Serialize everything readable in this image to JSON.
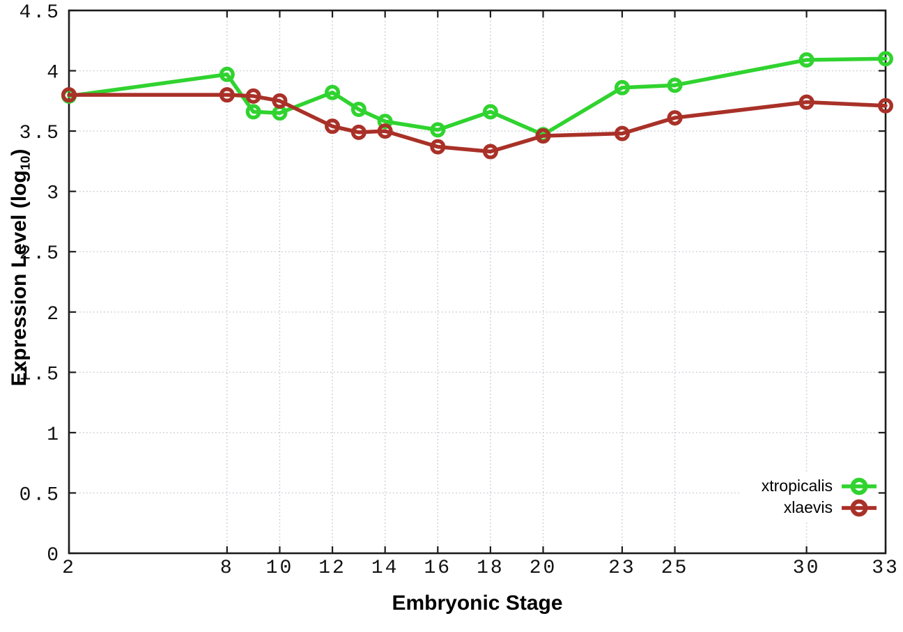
{
  "chart_data": {
    "type": "line",
    "title": "",
    "xlabel": "Embryonic Stage",
    "ylabel": {
      "text": "Expression Level (log",
      "subscript": "10",
      "suffix": ")"
    },
    "xlim": [
      2,
      33
    ],
    "ylim": [
      0,
      4.5
    ],
    "grid": true,
    "legend_position": "inside-bottom-right",
    "x_ticks": [
      2,
      8,
      10,
      12,
      14,
      16,
      18,
      20,
      23,
      25,
      30,
      33
    ],
    "x_tick_labels": [
      "2",
      "8",
      "10",
      "12",
      "14",
      "16",
      "18",
      "20",
      "23",
      "25",
      "30",
      "33"
    ],
    "y_ticks": [
      0,
      0.5,
      1,
      1.5,
      2,
      2.5,
      3,
      3.5,
      4,
      4.5
    ],
    "y_tick_labels": [
      "0",
      "0.5",
      "1",
      "1.5",
      "2",
      "2.5",
      "3",
      "3.5",
      "4",
      "4.5"
    ],
    "x": [
      2,
      8,
      9,
      10,
      12,
      13,
      14,
      16,
      18,
      20,
      23,
      25,
      30,
      33
    ],
    "series": [
      {
        "name": "xtropicalis",
        "color": "#30d32f",
        "values": [
          3.79,
          3.97,
          3.66,
          3.65,
          3.82,
          3.68,
          3.58,
          3.51,
          3.66,
          3.47,
          3.86,
          3.88,
          4.09,
          4.1
        ]
      },
      {
        "name": "xlaevis",
        "color": "#a93128",
        "values": [
          3.8,
          3.8,
          3.79,
          3.75,
          3.54,
          3.49,
          3.5,
          3.37,
          3.33,
          3.46,
          3.48,
          3.61,
          3.74,
          3.71
        ]
      }
    ],
    "style": {
      "grid_color": "#c4c8d0",
      "axis_color": "#1c1c1c",
      "marker": "open-circle"
    }
  }
}
